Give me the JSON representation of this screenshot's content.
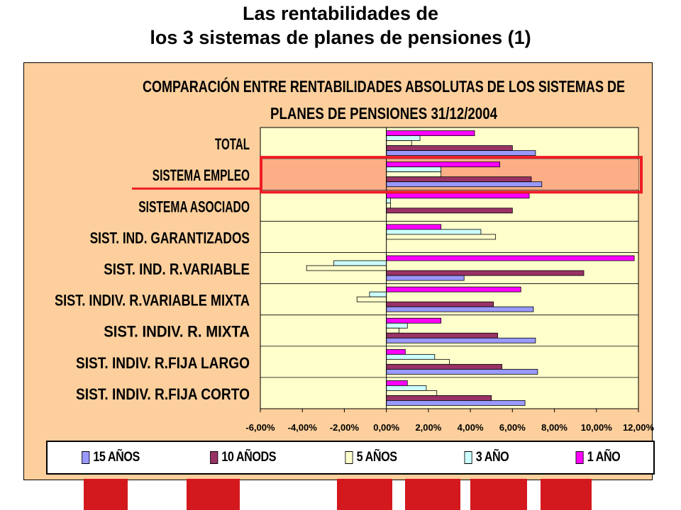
{
  "title_lines": [
    "Las rentabilidades de",
    "los 3 sistemas de planes de pensiones (1)"
  ],
  "chart_data": {
    "type": "bar",
    "orientation": "horizontal",
    "title_lines": [
      "COMPARACIÓN ENTRE RENTABILIDADES ABSOLUTAS DE LOS SISTEMAS DE",
      "PLANES DE PENSIONES 31/12/2004"
    ],
    "categories": [
      "TOTAL",
      "SISTEMA EMPLEO",
      "SISTEMA ASOCIADO",
      "SIST. IND. GARANTIZADOS",
      "SIST. IND. R.VARIABLE",
      "SIST. INDIV. R.VARIABLE MIXTA",
      "SIST. INDIV. R. MIXTA",
      "SIST. INDIV. R.FIJA LARGO",
      "SIST. INDIV. R.FIJA CORTO"
    ],
    "series": [
      {
        "name": "15 AÑOS",
        "color": "#9999ff",
        "values": [
          7.1,
          7.4,
          null,
          null,
          3.7,
          7.0,
          7.1,
          7.2,
          6.6
        ]
      },
      {
        "name": "10 AÑODS",
        "color": "#993366",
        "values": [
          6.0,
          6.9,
          6.0,
          null,
          9.4,
          5.1,
          5.3,
          5.5,
          5.0
        ]
      },
      {
        "name": "5 AÑOS",
        "color": "#ffffcc",
        "values": [
          1.2,
          2.6,
          0.2,
          5.2,
          -3.8,
          -1.4,
          0.6,
          3.0,
          2.4
        ]
      },
      {
        "name": "3 AÑO",
        "color": "#ccffff",
        "values": [
          1.6,
          2.6,
          0.2,
          4.5,
          -2.5,
          -0.8,
          1.0,
          2.3,
          1.9
        ]
      },
      {
        "name": "1 AÑO",
        "color": "#ff00ff",
        "values": [
          4.2,
          5.4,
          6.8,
          2.6,
          11.8,
          6.4,
          2.6,
          0.9,
          1.0
        ]
      }
    ],
    "xticks": [
      "-6,00%",
      "-4,00%",
      "-2,00%",
      "0,00%",
      "2,00%",
      "4,00%",
      "6,00%",
      "8,00%",
      "10,00%",
      "12,00%"
    ],
    "xlim": [
      -6,
      12
    ],
    "grid": "category separators",
    "legend_position": "bottom",
    "highlighted_category": "SISTEMA EMPLEO",
    "colors": {
      "panel": "#fccf9c",
      "plot": "#ffffcc",
      "highlight": "#fcae86",
      "highlight_border": "#ee1c25"
    }
  }
}
